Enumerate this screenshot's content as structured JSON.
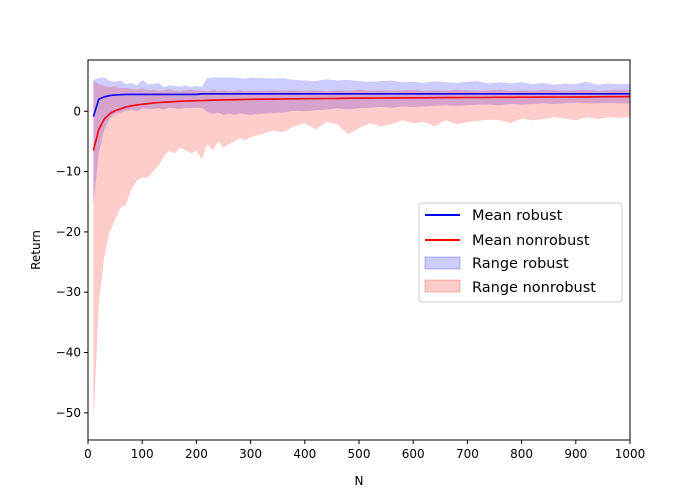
{
  "chart_data": {
    "type": "area",
    "xlabel": "N",
    "ylabel": "Return",
    "xlim": [
      0,
      1000
    ],
    "ylim": [
      -54.5,
      8.5
    ],
    "xticks": [
      0,
      100,
      200,
      300,
      400,
      500,
      600,
      700,
      800,
      900,
      1000
    ],
    "yticks": [
      -50,
      -40,
      -30,
      -20,
      -10,
      0
    ],
    "grid": false,
    "legend_position": "center-right",
    "x": [
      10,
      20,
      30,
      40,
      50,
      60,
      70,
      80,
      90,
      100,
      110,
      120,
      130,
      140,
      150,
      160,
      170,
      180,
      190,
      200,
      210,
      220,
      230,
      240,
      250,
      260,
      270,
      280,
      290,
      300,
      320,
      340,
      360,
      380,
      400,
      420,
      440,
      460,
      480,
      500,
      520,
      540,
      560,
      580,
      600,
      620,
      640,
      660,
      680,
      700,
      720,
      740,
      760,
      780,
      800,
      820,
      840,
      860,
      880,
      900,
      920,
      940,
      960,
      980,
      1000
    ],
    "series": [
      {
        "name": "Mean robust",
        "kind": "line",
        "color": "#0000ff",
        "values": [
          -0.9,
          2.0,
          2.4,
          2.6,
          2.7,
          2.75,
          2.78,
          2.8,
          2.8,
          2.8,
          2.8,
          2.8,
          2.8,
          2.8,
          2.8,
          2.8,
          2.8,
          2.8,
          2.8,
          2.8,
          2.9,
          2.9,
          2.9,
          2.9,
          2.9,
          2.9,
          2.9,
          2.9,
          2.9,
          2.9,
          2.9,
          2.9,
          2.9,
          2.9,
          2.9,
          2.9,
          2.9,
          2.9,
          2.9,
          2.9,
          2.9,
          2.9,
          2.9,
          2.9,
          2.9,
          2.9,
          2.9,
          2.9,
          2.9,
          2.9,
          2.9,
          2.9,
          2.9,
          2.9,
          2.9,
          2.9,
          2.9,
          2.9,
          2.9,
          2.9,
          2.9,
          2.9,
          2.9,
          2.9,
          2.9
        ]
      },
      {
        "name": "Mean nonrobust",
        "kind": "line",
        "color": "#ff0000",
        "values": [
          -6.5,
          -3.0,
          -1.3,
          -0.4,
          0.1,
          0.4,
          0.7,
          0.9,
          1.05,
          1.15,
          1.25,
          1.35,
          1.45,
          1.5,
          1.55,
          1.6,
          1.65,
          1.7,
          1.72,
          1.75,
          1.78,
          1.8,
          1.83,
          1.85,
          1.88,
          1.9,
          1.92,
          1.94,
          1.96,
          1.98,
          2.0,
          2.02,
          2.04,
          2.06,
          2.08,
          2.1,
          2.12,
          2.14,
          2.16,
          2.17,
          2.19,
          2.2,
          2.21,
          2.22,
          2.23,
          2.24,
          2.25,
          2.26,
          2.27,
          2.28,
          2.29,
          2.3,
          2.31,
          2.32,
          2.33,
          2.34,
          2.35,
          2.36,
          2.37,
          2.38,
          2.39,
          2.4,
          2.41,
          2.42,
          2.43
        ]
      },
      {
        "name": "Range robust",
        "kind": "band",
        "color": "#0000ff",
        "opacity": 0.2,
        "upper": [
          5.2,
          5.5,
          5.6,
          5.0,
          4.9,
          5.1,
          4.5,
          4.7,
          4.3,
          5.2,
          4.5,
          4.5,
          4.7,
          4.0,
          4.3,
          4.2,
          4.1,
          4.3,
          4.0,
          4.2,
          4.1,
          5.5,
          5.6,
          5.6,
          5.6,
          5.6,
          5.6,
          5.5,
          5.4,
          5.6,
          5.5,
          5.4,
          5.5,
          5.2,
          5.1,
          5.0,
          5.3,
          5.1,
          5.2,
          5.0,
          4.9,
          5.0,
          5.1,
          4.8,
          4.9,
          4.7,
          5.0,
          4.8,
          4.7,
          4.9,
          5.0,
          4.6,
          4.8,
          4.6,
          4.8,
          4.5,
          4.7,
          4.4,
          4.6,
          4.5,
          4.9,
          4.4,
          4.6,
          4.5,
          4.5
        ],
        "lower": [
          -15.5,
          -7.0,
          -3.0,
          -1.2,
          -0.4,
          -0.2,
          0.1,
          0.3,
          0.0,
          0.5,
          0.4,
          0.4,
          0.5,
          0.3,
          0.6,
          0.5,
          0.4,
          0.6,
          0.5,
          0.6,
          0.6,
          -0.1,
          -0.4,
          -0.2,
          -0.6,
          -0.4,
          -0.6,
          -0.3,
          -0.5,
          -0.6,
          -0.4,
          -0.3,
          -0.2,
          0.1,
          0.0,
          0.2,
          0.3,
          0.5,
          0.3,
          0.5,
          0.6,
          0.7,
          0.6,
          0.8,
          0.7,
          0.8,
          0.9,
          1.0,
          0.9,
          1.0,
          1.1,
          1.1,
          1.0,
          1.2,
          1.1,
          1.2,
          1.3,
          1.2,
          1.3,
          1.4,
          1.3,
          1.3,
          1.4,
          1.3,
          1.3
        ]
      },
      {
        "name": "Range nonrobust",
        "kind": "band",
        "color": "#ff0000",
        "opacity": 0.2,
        "upper": [
          5.0,
          4.5,
          4.2,
          4.0,
          4.1,
          3.8,
          3.9,
          3.7,
          3.6,
          3.8,
          3.5,
          3.6,
          3.4,
          3.5,
          3.7,
          3.4,
          3.3,
          3.5,
          3.6,
          3.4,
          3.5,
          3.3,
          3.6,
          3.4,
          3.5,
          3.3,
          3.4,
          3.5,
          3.3,
          3.4,
          3.4,
          3.5,
          3.4,
          3.5,
          3.4,
          3.5,
          3.3,
          3.5,
          3.4,
          3.6,
          3.4,
          3.5,
          3.4,
          3.5,
          3.6,
          3.4,
          3.5,
          3.4,
          3.6,
          3.5,
          3.4,
          3.5,
          3.6,
          3.4,
          3.5,
          3.4,
          3.6,
          3.5,
          3.4,
          3.5,
          3.6,
          3.4,
          3.5,
          3.6,
          3.5
        ],
        "lower": [
          -52.0,
          -32.0,
          -24.0,
          -20.0,
          -18.0,
          -16.0,
          -15.5,
          -13.0,
          -11.5,
          -11.0,
          -11.0,
          -10.0,
          -9.0,
          -7.5,
          -6.5,
          -7.0,
          -6.0,
          -6.5,
          -7.0,
          -6.5,
          -8.0,
          -5.5,
          -6.5,
          -5.0,
          -6.0,
          -5.5,
          -5.0,
          -4.5,
          -4.8,
          -4.3,
          -3.8,
          -3.2,
          -3.5,
          -2.5,
          -2.0,
          -3.0,
          -1.8,
          -2.2,
          -3.8,
          -2.8,
          -2.0,
          -2.5,
          -2.2,
          -1.5,
          -2.0,
          -1.8,
          -2.5,
          -1.5,
          -2.2,
          -1.8,
          -1.6,
          -1.4,
          -1.5,
          -2.0,
          -1.2,
          -1.5,
          -1.3,
          -1.0,
          -1.2,
          -1.5,
          -1.0,
          -1.3,
          -1.0,
          -1.1,
          -1.0
        ]
      }
    ]
  }
}
